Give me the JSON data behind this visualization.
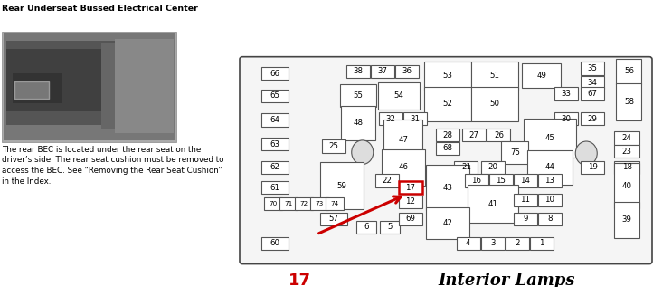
{
  "title": "Rear Underseat Bussed Electrical Center",
  "description_text": "The rear BEC is located under the rear seat on the\ndriver’s side. The rear seat cushion must be removed to\naccess the BEC. See “Removing the Rear Seat Cushion”\nin the Index.",
  "label_17": "17",
  "label_interior_lamps": "Interior Lamps",
  "bg_color": "#ffffff",
  "highlight_color": "#cc0000"
}
